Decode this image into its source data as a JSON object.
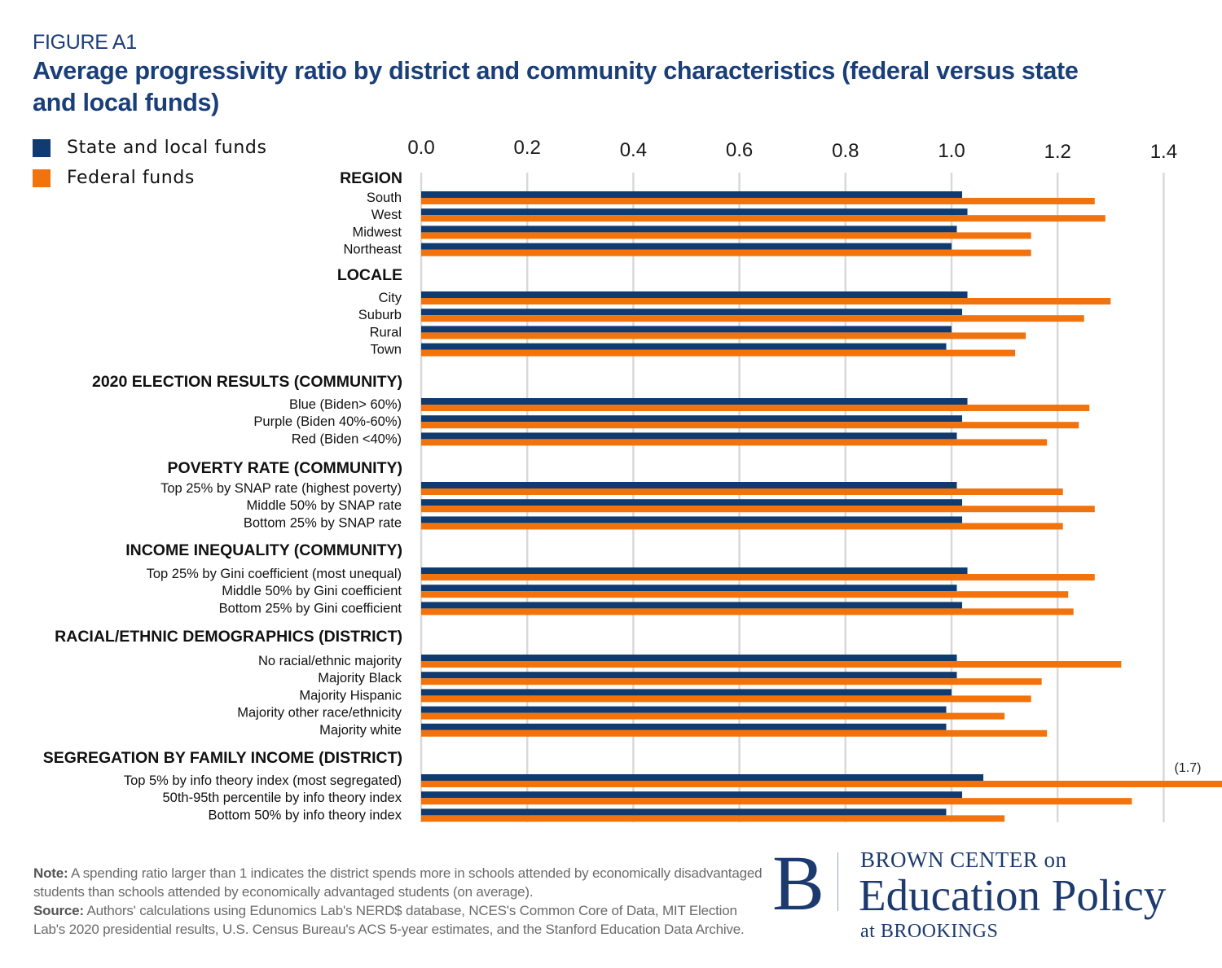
{
  "figure_label": "FIGURE A1",
  "title": "Average progressivity ratio by district and community characteristics (federal versus state and local funds)",
  "colors": {
    "state_local": "#0f3b70",
    "federal": "#f2720c",
    "grid": "#d9d9d9",
    "title": "#1a3e78"
  },
  "legend": [
    {
      "label": "State and local funds",
      "color": "#0f3b70"
    },
    {
      "label": "Federal funds",
      "color": "#f2720c"
    }
  ],
  "chart_data": {
    "type": "bar",
    "orientation": "horizontal",
    "title": "Average progressivity ratio by district and community characteristics (federal versus state and local funds)",
    "xlabel": "",
    "ylabel": "",
    "xlim": [
      0,
      1.4
    ],
    "xticks": [
      "0.0",
      "0.2",
      "0.4",
      "0.6",
      "0.8",
      "1.0",
      "1.2",
      "1.4"
    ],
    "grid": true,
    "legend_position": "top-left",
    "series_names": [
      "State and local funds",
      "Federal funds"
    ],
    "groups": [
      {
        "name": "REGION",
        "rows": [
          {
            "label": "South",
            "state_local": 1.02,
            "federal": 1.27
          },
          {
            "label": "West",
            "state_local": 1.03,
            "federal": 1.29
          },
          {
            "label": "Midwest",
            "state_local": 1.01,
            "federal": 1.15
          },
          {
            "label": "Northeast",
            "state_local": 1.0,
            "federal": 1.15
          }
        ]
      },
      {
        "name": "LOCALE",
        "rows": [
          {
            "label": "City",
            "state_local": 1.03,
            "federal": 1.3
          },
          {
            "label": "Suburb",
            "state_local": 1.02,
            "federal": 1.25
          },
          {
            "label": "Rural",
            "state_local": 1.0,
            "federal": 1.14
          },
          {
            "label": "Town",
            "state_local": 0.99,
            "federal": 1.12
          }
        ]
      },
      {
        "name": "2020 ELECTION RESULTS (COMMUNITY)",
        "rows": [
          {
            "label": "Blue (Biden> 60%)",
            "state_local": 1.03,
            "federal": 1.26
          },
          {
            "label": "Purple (Biden 40%-60%)",
            "state_local": 1.02,
            "federal": 1.24
          },
          {
            "label": "Red (Biden <40%)",
            "state_local": 1.01,
            "federal": 1.18
          }
        ]
      },
      {
        "name": "POVERTY RATE (COMMUNITY)",
        "rows": [
          {
            "label": "Top 25% by SNAP rate (highest poverty)",
            "state_local": 1.01,
            "federal": 1.21
          },
          {
            "label": "Middle 50% by SNAP rate",
            "state_local": 1.02,
            "federal": 1.27
          },
          {
            "label": "Bottom 25% by SNAP rate",
            "state_local": 1.02,
            "federal": 1.21
          }
        ]
      },
      {
        "name": "INCOME INEQUALITY (COMMUNITY)",
        "rows": [
          {
            "label": "Top 25% by Gini coefficient (most unequal)",
            "state_local": 1.03,
            "federal": 1.27
          },
          {
            "label": "Middle 50% by Gini coefficient",
            "state_local": 1.01,
            "federal": 1.22
          },
          {
            "label": "Bottom 25% by Gini coefficient",
            "state_local": 1.02,
            "federal": 1.23
          }
        ]
      },
      {
        "name": "RACIAL/ETHNIC DEMOGRAPHICS (DISTRICT)",
        "rows": [
          {
            "label": "No racial/ethnic majority",
            "state_local": 1.01,
            "federal": 1.32
          },
          {
            "label": "Majority Black",
            "state_local": 1.01,
            "federal": 1.17
          },
          {
            "label": "Majority Hispanic",
            "state_local": 1.0,
            "federal": 1.15
          },
          {
            "label": "Majority other race/ethnicity",
            "state_local": 0.99,
            "federal": 1.1
          },
          {
            "label": "Majority white",
            "state_local": 0.99,
            "federal": 1.18
          }
        ]
      },
      {
        "name": "SEGREGATION BY FAMILY INCOME (DISTRICT)",
        "rows": [
          {
            "label": "Top 5% by info theory index (most segregated)",
            "state_local": 1.06,
            "federal": 1.7,
            "federal_annotation": "(1.7)"
          },
          {
            "label": "50th-95th percentile by info theory index",
            "state_local": 1.02,
            "federal": 1.34
          },
          {
            "label": "Bottom 50% by info theory index",
            "state_local": 0.99,
            "federal": 1.1
          }
        ]
      }
    ]
  },
  "note": {
    "note_label": "Note:",
    "note_text": " A spending ratio larger than 1 indicates the district spends more in schools attended by economically disadvantaged students than schools attended by economically advantaged students (on average).",
    "source_label": "Source:",
    "source_text": " Authors' calculations using Edunomics Lab's NERD$ database, NCES's Common Core of Data, MIT Election Lab's 2020 presidential results, U.S. Census Bureau's ACS 5-year estimates, and the Stanford Education Data Archive."
  },
  "logo": {
    "letter": "B",
    "line1": "BROWN CENTER on",
    "line2": "Education Policy",
    "line3": "at BROOKINGS"
  }
}
